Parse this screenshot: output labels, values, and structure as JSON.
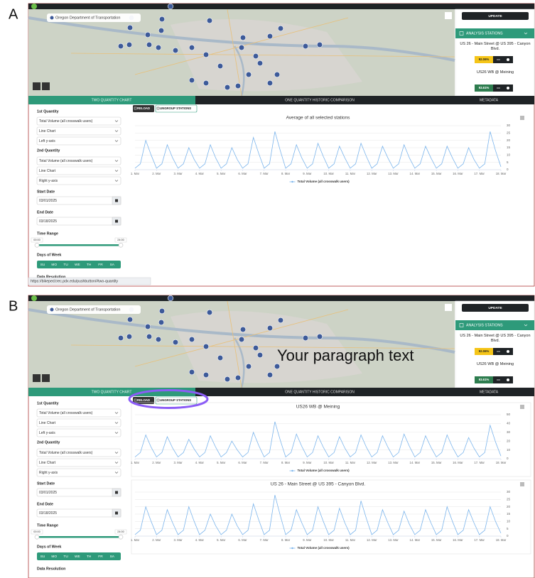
{
  "panels": [
    {
      "label": "A",
      "map": {
        "attribution": "Oregon Department of Transportation"
      },
      "sidebar": {
        "update": "UPDATE",
        "header": "ANALYSIS STATIONS",
        "stations": [
          {
            "name": "US 26 - Main Street @ US 395 - Canyon Blvd.",
            "score": "92.06%"
          },
          {
            "name": "US26 WB @ Meining",
            "score": "93.61%"
          }
        ]
      },
      "tabs": [
        "TWO QUANTITY CHART",
        "ONE QUANTITY HISTORIC COMPARISON",
        "METADATA"
      ],
      "buttons": [
        "RELOAD",
        "UNGROUP STATIONS"
      ],
      "form": {
        "q1": {
          "label": "1st Quantity",
          "options": [
            "Total Volume (all crosswalk users)",
            "Line Chart",
            "Left y-axis"
          ]
        },
        "q2": {
          "label": "2nd Quantity",
          "options": [
            "Total Volume (all crosswalk users)",
            "Line Chart",
            "Right y-axis"
          ]
        },
        "start": {
          "label": "Start Date",
          "value": "03/01/2025"
        },
        "end": {
          "label": "End Date",
          "value": "03/18/2025"
        },
        "time": {
          "label": "Time Range",
          "from": "00:00",
          "to": "24:00"
        },
        "days": {
          "label": "Days of Week",
          "items": [
            "SU",
            "MO",
            "TU",
            "WE",
            "TH",
            "FR",
            "SA"
          ]
        },
        "resolution": "Data Resolution"
      },
      "chart_data": [
        {
          "type": "line",
          "title": "Average of all selected stations",
          "x": [
            1,
            1.25,
            1.5,
            1.75,
            2,
            2.25,
            2.5,
            2.75,
            3,
            3.25,
            3.5,
            3.75,
            4,
            4.25,
            4.5,
            4.75,
            5,
            5.25,
            5.5,
            5.75,
            6,
            6.25,
            6.5,
            6.75,
            7,
            7.25,
            7.5,
            7.75,
            8,
            8.25,
            8.5,
            8.75,
            9,
            9.25,
            9.5,
            9.75,
            10,
            10.25,
            10.5,
            10.75,
            11,
            11.25,
            11.5,
            11.75,
            12,
            12.25,
            12.5,
            12.75,
            13,
            13.25,
            13.5,
            13.75,
            14,
            14.25,
            14.5,
            14.75,
            15,
            15.25,
            15.5,
            15.75,
            16,
            16.25,
            16.5,
            16.75,
            17,
            17.25,
            17.5,
            17.75,
            18
          ],
          "series": [
            {
              "name": "Total Volume (all crosswalk users)",
              "color": "#7cb5ec",
              "values": [
                1,
                4,
                20,
                10,
                1,
                4,
                17,
                8,
                1,
                4,
                15,
                7,
                1,
                4,
                17,
                8,
                1,
                4,
                15,
                7,
                1,
                4,
                22,
                11,
                1,
                4,
                26,
                13,
                1,
                4,
                17,
                8,
                1,
                4,
                18,
                9,
                1,
                4,
                16,
                8,
                1,
                4,
                18,
                9,
                1,
                4,
                16,
                8,
                1,
                4,
                17,
                8,
                1,
                4,
                16,
                8,
                1,
                4,
                16,
                8,
                1,
                4,
                15,
                7,
                1,
                4,
                26,
                13,
                2
              ]
            }
          ],
          "xlim": [
            1,
            18
          ],
          "xticks": [
            {
              "value": 1,
              "label": "1. Mar"
            },
            {
              "value": 2,
              "label": "2. Mar"
            },
            {
              "value": 3,
              "label": "3. Mar"
            },
            {
              "value": 4,
              "label": "4. Mar"
            },
            {
              "value": 5,
              "label": "5. Mar"
            },
            {
              "value": 6,
              "label": "6. Mar"
            },
            {
              "value": 7,
              "label": "7. Mar"
            },
            {
              "value": 8,
              "label": "8. Mar"
            },
            {
              "value": 9,
              "label": "9. Mar"
            },
            {
              "value": 10,
              "label": "10. Mar"
            },
            {
              "value": 11,
              "label": "11. Mar"
            },
            {
              "value": 12,
              "label": "12. Mar"
            },
            {
              "value": 13,
              "label": "13. Mar"
            },
            {
              "value": 14,
              "label": "14. Mar"
            },
            {
              "value": 15,
              "label": "15. Mar"
            },
            {
              "value": 16,
              "label": "16. Mar"
            },
            {
              "value": 17,
              "label": "17. Mar"
            },
            {
              "value": 18,
              "label": "18. Mar"
            }
          ],
          "ylim": [
            0,
            30
          ],
          "yticks": [
            0,
            5,
            10,
            15,
            20,
            25,
            30
          ],
          "grid": true
        }
      ],
      "status_url": "https://bikeped.trec.pdx.edu/pushbutton/#two-quantity"
    },
    {
      "label": "B",
      "map": {
        "attribution": "Oregon Department of Transportation"
      },
      "overlay_text": "Your paragraph text",
      "sidebar": {
        "update": "UPDATE",
        "header": "ANALYSIS STATIONS",
        "stations": [
          {
            "name": "US 26 - Main Street @ US 395 - Canyon Blvd.",
            "score": "92.06%"
          },
          {
            "name": "US26 WB @ Meining",
            "score": "93.61%"
          }
        ]
      },
      "tabs": [
        "TWO QUANTITY CHART",
        "ONE QUANTITY HISTORIC COMPARISON",
        "METADATA"
      ],
      "buttons": [
        "RELOAD",
        "UNGROUP STATIONS"
      ],
      "form": {
        "q1": {
          "label": "1st Quantity",
          "options": [
            "Total Volume (all crosswalk users)",
            "Line Chart",
            "Left y-axis"
          ]
        },
        "q2": {
          "label": "2nd Quantity",
          "options": [
            "Total Volume (all crosswalk users)",
            "Line Chart",
            "Right y-axis"
          ]
        },
        "start": {
          "label": "Start Date",
          "value": "03/01/2025"
        },
        "end": {
          "label": "End Date",
          "value": "03/18/2025"
        },
        "time": {
          "label": "Time Range",
          "from": "00:00",
          "to": "24:00"
        },
        "days": {
          "label": "Days of Week",
          "items": [
            "SU",
            "MO",
            "TU",
            "WE",
            "TH",
            "FR",
            "SA"
          ]
        },
        "resolution": "Data Resolution"
      },
      "chart_data": [
        {
          "type": "line",
          "title": "US26 WB @ Meining",
          "x": [
            1,
            1.25,
            1.5,
            1.75,
            2,
            2.25,
            2.5,
            2.75,
            3,
            3.25,
            3.5,
            3.75,
            4,
            4.25,
            4.5,
            4.75,
            5,
            5.25,
            5.5,
            5.75,
            6,
            6.25,
            6.5,
            6.75,
            7,
            7.25,
            7.5,
            7.75,
            8,
            8.25,
            8.5,
            8.75,
            9,
            9.25,
            9.5,
            9.75,
            10,
            10.25,
            10.5,
            10.75,
            11,
            11.25,
            11.5,
            11.75,
            12,
            12.25,
            12.5,
            12.75,
            13,
            13.25,
            13.5,
            13.75,
            14,
            14.25,
            14.5,
            14.75,
            15,
            15.25,
            15.5,
            15.75,
            16,
            16.25,
            16.5,
            16.75,
            17,
            17.25,
            17.5,
            17.75,
            18
          ],
          "series": [
            {
              "name": "Total Volume (all crosswalk users)",
              "color": "#7cb5ec",
              "values": [
                2,
                7,
                27,
                13,
                2,
                7,
                25,
                12,
                2,
                7,
                22,
                11,
                2,
                7,
                26,
                13,
                2,
                7,
                20,
                10,
                2,
                7,
                30,
                15,
                2,
                7,
                42,
                21,
                2,
                7,
                28,
                14,
                2,
                7,
                26,
                13,
                2,
                7,
                25,
                12,
                2,
                7,
                27,
                13,
                2,
                7,
                26,
                13,
                2,
                7,
                28,
                14,
                2,
                7,
                26,
                13,
                2,
                7,
                27,
                13,
                2,
                7,
                24,
                12,
                2,
                7,
                38,
                19,
                3
              ]
            }
          ],
          "xlim": [
            1,
            18
          ],
          "xticks": [
            {
              "value": 1,
              "label": "1. Mar"
            },
            {
              "value": 2,
              "label": "2. Mar"
            },
            {
              "value": 3,
              "label": "3. Mar"
            },
            {
              "value": 4,
              "label": "4. Mar"
            },
            {
              "value": 5,
              "label": "5. Mar"
            },
            {
              "value": 6,
              "label": "6. Mar"
            },
            {
              "value": 7,
              "label": "7. Mar"
            },
            {
              "value": 8,
              "label": "8. Mar"
            },
            {
              "value": 9,
              "label": "9. Mar"
            },
            {
              "value": 10,
              "label": "10. Mar"
            },
            {
              "value": 11,
              "label": "11. Mar"
            },
            {
              "value": 12,
              "label": "12. Mar"
            },
            {
              "value": 13,
              "label": "13. Mar"
            },
            {
              "value": 14,
              "label": "14. Mar"
            },
            {
              "value": 15,
              "label": "15. Mar"
            },
            {
              "value": 16,
              "label": "16. Mar"
            },
            {
              "value": 17,
              "label": "17. Mar"
            },
            {
              "value": 18,
              "label": "18. Mar"
            }
          ],
          "ylim": [
            0,
            50
          ],
          "yticks": [
            0,
            10,
            20,
            30,
            40,
            50
          ],
          "grid": true
        },
        {
          "type": "line",
          "title": "US 26 - Main Street @ US 395 - Canyon Blvd.",
          "x": [
            1,
            1.25,
            1.5,
            1.75,
            2,
            2.25,
            2.5,
            2.75,
            3,
            3.25,
            3.5,
            3.75,
            4,
            4.25,
            4.5,
            4.75,
            5,
            5.25,
            5.5,
            5.75,
            6,
            6.25,
            6.5,
            6.75,
            7,
            7.25,
            7.5,
            7.75,
            8,
            8.25,
            8.5,
            8.75,
            9,
            9.25,
            9.5,
            9.75,
            10,
            10.25,
            10.5,
            10.75,
            11,
            11.25,
            11.5,
            11.75,
            12,
            12.25,
            12.5,
            12.75,
            13,
            13.25,
            13.5,
            13.75,
            14,
            14.25,
            14.5,
            14.75,
            15,
            15.25,
            15.5,
            15.75,
            16,
            16.25,
            16.5,
            16.75,
            17,
            17.25,
            17.5,
            17.75,
            18
          ],
          "series": [
            {
              "name": "Total Volume (all crosswalk users)",
              "color": "#7cb5ec",
              "values": [
                1,
                4,
                20,
                10,
                1,
                4,
                18,
                9,
                1,
                4,
                20,
                10,
                1,
                4,
                15,
                7,
                1,
                4,
                15,
                7,
                1,
                4,
                22,
                11,
                1,
                4,
                28,
                14,
                1,
                4,
                18,
                9,
                1,
                4,
                20,
                10,
                1,
                4,
                19,
                9,
                1,
                4,
                24,
                12,
                1,
                4,
                18,
                9,
                1,
                4,
                17,
                8,
                1,
                4,
                18,
                9,
                1,
                4,
                20,
                10,
                1,
                4,
                18,
                9,
                1,
                4,
                20,
                10,
                2
              ]
            }
          ],
          "xlim": [
            1,
            18
          ],
          "xticks": [
            {
              "value": 1,
              "label": "1. Mar"
            },
            {
              "value": 2,
              "label": "2. Mar"
            },
            {
              "value": 3,
              "label": "3. Mar"
            },
            {
              "value": 4,
              "label": "4. Mar"
            },
            {
              "value": 5,
              "label": "5. Mar"
            },
            {
              "value": 6,
              "label": "6. Mar"
            },
            {
              "value": 7,
              "label": "7. Mar"
            },
            {
              "value": 8,
              "label": "8. Mar"
            },
            {
              "value": 9,
              "label": "9. Mar"
            },
            {
              "value": 10,
              "label": "10. Mar"
            },
            {
              "value": 11,
              "label": "11. Mar"
            },
            {
              "value": 12,
              "label": "12. Mar"
            },
            {
              "value": 13,
              "label": "13. Mar"
            },
            {
              "value": 14,
              "label": "14. Mar"
            },
            {
              "value": 15,
              "label": "15. Mar"
            },
            {
              "value": 16,
              "label": "16. Mar"
            },
            {
              "value": 17,
              "label": "17. Mar"
            },
            {
              "value": 18,
              "label": "18. Mar"
            }
          ],
          "ylim": [
            0,
            30
          ],
          "yticks": [
            0,
            5,
            10,
            15,
            20,
            25,
            30
          ],
          "grid": true
        }
      ]
    }
  ]
}
